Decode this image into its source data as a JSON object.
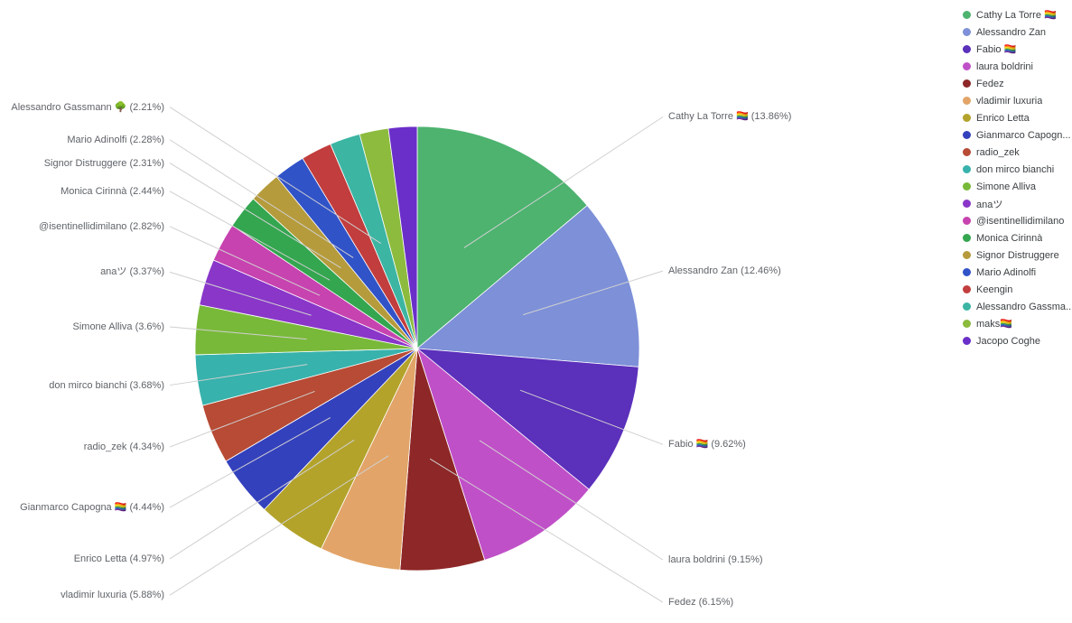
{
  "chart_data": {
    "type": "pie",
    "title": "",
    "legend_position": "right",
    "direction": "clockwise",
    "start_angle": "top",
    "leader_line_color": "#d0d0d0",
    "label_color": "#5f6368",
    "slices": [
      {
        "name": "Cathy La Torre 🏳️‍🌈",
        "value": 13.86,
        "color": "#4db36f",
        "callout": "Cathy La Torre 🏳️‍🌈 (13.86%)",
        "legend_label": "Cathy La Torre 🏳️‍🌈"
      },
      {
        "name": "Alessandro Zan",
        "value": 12.46,
        "color": "#7d90d8",
        "callout": "Alessandro Zan (12.46%)",
        "legend_label": "Alessandro Zan"
      },
      {
        "name": "Fabio 🏳️‍🌈",
        "value": 9.62,
        "color": "#5b30bb",
        "callout": "Fabio 🏳️‍🌈 (9.62%)",
        "legend_label": "Fabio 🏳️‍🌈"
      },
      {
        "name": "laura boldrini",
        "value": 9.15,
        "color": "#c050c8",
        "callout": "laura boldrini (9.15%)",
        "legend_label": "laura boldrini"
      },
      {
        "name": "Fedez",
        "value": 6.15,
        "color": "#8e2727",
        "callout": "Fedez (6.15%)",
        "legend_label": "Fedez"
      },
      {
        "name": "vladimir luxuria",
        "value": 5.88,
        "color": "#e2a468",
        "callout": "vladimir luxuria (5.88%)",
        "legend_label": "vladimir luxuria"
      },
      {
        "name": "Enrico Letta",
        "value": 4.97,
        "color": "#b3a32b",
        "callout": "Enrico Letta (4.97%)",
        "legend_label": "Enrico Letta"
      },
      {
        "name": "Gianmarco Capogna 🏳️‍🌈",
        "value": 4.44,
        "color": "#3441bd",
        "callout": "Gianmarco Capogna 🏳️‍🌈 (4.44%)",
        "legend_label": "Gianmarco Capogn..."
      },
      {
        "name": "radio_zek",
        "value": 4.34,
        "color": "#b74b35",
        "callout": "radio_zek (4.34%)",
        "legend_label": "radio_zek"
      },
      {
        "name": "don mirco bianchi",
        "value": 3.68,
        "color": "#38b2ac",
        "callout": "don mirco bianchi (3.68%)",
        "legend_label": "don mirco bianchi"
      },
      {
        "name": "Simone Alliva",
        "value": 3.6,
        "color": "#79b939",
        "callout": "Simone Alliva (3.6%)",
        "legend_label": "Simone Alliva"
      },
      {
        "name": "anaツ",
        "value": 3.37,
        "color": "#8936c9",
        "callout": "anaツ (3.37%)",
        "legend_label": "anaツ"
      },
      {
        "name": "@isentinellidimilano",
        "value": 2.82,
        "color": "#c743af",
        "callout": "@isentinellidimilano (2.82%)",
        "legend_label": "@isentinellidimilano"
      },
      {
        "name": "Monica Cirinnà",
        "value": 2.44,
        "color": "#33a64f",
        "callout": "Monica Cirinnà (2.44%)",
        "legend_label": "Monica Cirinnà"
      },
      {
        "name": "Signor Distruggere",
        "value": 2.31,
        "color": "#b59b3b",
        "callout": "Signor Distruggere (2.31%)",
        "legend_label": "Signor Distruggere"
      },
      {
        "name": "Mario Adinolfi",
        "value": 2.28,
        "color": "#3153c8",
        "callout": "Mario Adinolfi (2.28%)",
        "legend_label": "Mario Adinolfi"
      },
      {
        "name": "Keengin",
        "value": 2.24,
        "color": "#c23d3d",
        "callout": null,
        "legend_label": "Keengin"
      },
      {
        "name": "Alessandro Gassmann 🌳",
        "value": 2.21,
        "color": "#3cb5a3",
        "callout": "Alessandro Gassmann 🌳 (2.21%)",
        "legend_label": "Alessandro Gassma..."
      },
      {
        "name": "maks🏳️‍🌈",
        "value": 2.1,
        "color": "#8cbb3d",
        "callout": null,
        "legend_label": "maks🏳️‍🌈"
      },
      {
        "name": "Jacopo Coghe",
        "value": 2.08,
        "color": "#6a2fc9",
        "callout": null,
        "legend_label": "Jacopo Coghe"
      }
    ]
  }
}
